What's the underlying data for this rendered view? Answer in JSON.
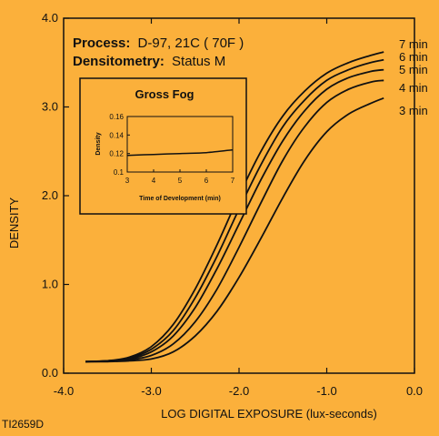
{
  "colors": {
    "background": "#fbb03b",
    "ink": "#111111"
  },
  "process": {
    "label": "Process:",
    "value": "D-97, 21C ( 70F )"
  },
  "densitometry": {
    "label": "Densitometry:",
    "value": "Status M"
  },
  "footer_code": "TI2659D",
  "chart_data": [
    {
      "type": "line",
      "xlabel": "LOG DIGITAL EXPOSURE (lux-seconds)",
      "ylabel": "DENSITY",
      "xlim": [
        -4.0,
        0.0
      ],
      "ylim": [
        0.0,
        4.0
      ],
      "x_ticks": [
        "-4.0",
        "-3.0",
        "-2.0",
        "-1.0",
        "0.0"
      ],
      "y_ticks": [
        "0.0",
        "1.0",
        "2.0",
        "3.0",
        "4.0"
      ],
      "grid": false,
      "legend": "right end labels",
      "series": [
        {
          "name": "7 min",
          "x": [
            -3.75,
            -3.5,
            -3.25,
            -3.0,
            -2.75,
            -2.5,
            -2.25,
            -2.0,
            -1.75,
            -1.5,
            -1.25,
            -1.0,
            -0.75,
            -0.5,
            -0.35
          ],
          "y": [
            0.13,
            0.14,
            0.18,
            0.3,
            0.55,
            0.95,
            1.45,
            2.0,
            2.5,
            2.9,
            3.18,
            3.38,
            3.5,
            3.58,
            3.62
          ]
        },
        {
          "name": "6 min",
          "x": [
            -3.75,
            -3.5,
            -3.25,
            -3.0,
            -2.75,
            -2.5,
            -2.25,
            -2.0,
            -1.75,
            -1.5,
            -1.25,
            -1.0,
            -0.75,
            -0.5,
            -0.35
          ],
          "y": [
            0.13,
            0.14,
            0.17,
            0.27,
            0.48,
            0.85,
            1.32,
            1.85,
            2.35,
            2.78,
            3.08,
            3.3,
            3.42,
            3.5,
            3.53
          ]
        },
        {
          "name": "5 min",
          "x": [
            -3.75,
            -3.5,
            -3.25,
            -3.0,
            -2.75,
            -2.5,
            -2.25,
            -2.0,
            -1.75,
            -1.5,
            -1.25,
            -1.0,
            -0.75,
            -0.5,
            -0.35
          ],
          "y": [
            0.13,
            0.14,
            0.16,
            0.24,
            0.42,
            0.74,
            1.18,
            1.68,
            2.18,
            2.62,
            2.96,
            3.2,
            3.33,
            3.4,
            3.42
          ]
        },
        {
          "name": "4 min",
          "x": [
            -3.75,
            -3.5,
            -3.25,
            -3.0,
            -2.75,
            -2.5,
            -2.25,
            -2.0,
            -1.75,
            -1.5,
            -1.25,
            -1.0,
            -0.75,
            -0.5,
            -0.35
          ],
          "y": [
            0.13,
            0.135,
            0.15,
            0.2,
            0.33,
            0.58,
            0.95,
            1.42,
            1.92,
            2.4,
            2.78,
            3.05,
            3.2,
            3.28,
            3.3
          ]
        },
        {
          "name": "3 min",
          "x": [
            -3.75,
            -3.5,
            -3.25,
            -3.0,
            -2.75,
            -2.5,
            -2.25,
            -2.0,
            -1.75,
            -1.5,
            -1.25,
            -1.0,
            -0.75,
            -0.5,
            -0.35
          ],
          "y": [
            0.13,
            0.13,
            0.14,
            0.16,
            0.24,
            0.42,
            0.7,
            1.08,
            1.52,
            1.98,
            2.4,
            2.72,
            2.92,
            3.04,
            3.1
          ]
        }
      ]
    },
    {
      "type": "line",
      "title": "Gross Fog",
      "xlabel": "Time of Development (min)",
      "ylabel": "Density",
      "xlim": [
        3,
        7
      ],
      "ylim": [
        0.1,
        0.16
      ],
      "x_ticks": [
        "3",
        "4",
        "5",
        "6",
        "7"
      ],
      "y_ticks": [
        "0.1",
        "0.12",
        "0.14",
        "0.16"
      ],
      "grid": false,
      "series": [
        {
          "x": [
            3,
            4,
            5,
            6,
            7
          ],
          "y": [
            0.118,
            0.119,
            0.12,
            0.121,
            0.124
          ]
        }
      ]
    }
  ]
}
